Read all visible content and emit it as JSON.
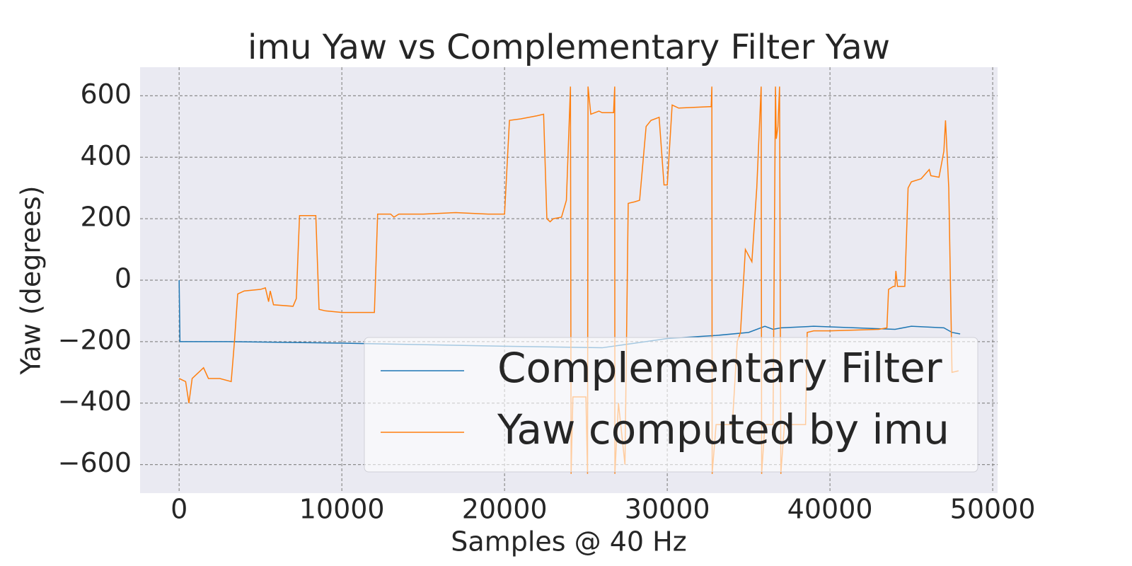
{
  "chart_data": {
    "type": "line",
    "title": "imu Yaw vs Complementary Filter Yaw",
    "xlabel": "Samples @ 40 Hz",
    "ylabel": "Yaw (degrees)",
    "xlim": [
      -2400,
      50300
    ],
    "ylim": [
      -693,
      693
    ],
    "xticks": [
      0,
      10000,
      20000,
      30000,
      40000,
      50000
    ],
    "yticks": [
      {
        "value": -600,
        "label": "−600"
      },
      {
        "value": -400,
        "label": "−400"
      },
      {
        "value": -200,
        "label": "−200"
      },
      0,
      200,
      400,
      600
    ],
    "grid": true,
    "legend": "lower right",
    "series": [
      {
        "name": "Complementary Filter",
        "color": "#1f77b4",
        "x": [
          0,
          50,
          3000,
          10000,
          20000,
          26000,
          30000,
          33000,
          35000,
          36000,
          36500,
          37000,
          39000,
          44000,
          45000,
          47000,
          47500,
          48000
        ],
        "values": [
          0,
          -200,
          -200,
          -205,
          -215,
          -220,
          -190,
          -180,
          -170,
          -150,
          -160,
          -155,
          -150,
          -160,
          -150,
          -155,
          -170,
          -175
        ]
      },
      {
        "name": "Yaw computed by imu",
        "color": "#ff7f0e",
        "x": [
          0,
          400,
          600,
          800,
          1200,
          1500,
          1800,
          2500,
          3200,
          3400,
          3600,
          4000,
          5000,
          5300,
          5500,
          5600,
          5800,
          7000,
          7200,
          7400,
          8400,
          8600,
          9000,
          10000,
          12000,
          12200,
          13000,
          13200,
          13500,
          15000,
          17000,
          19000,
          20000,
          20300,
          21000,
          22000,
          22400,
          22600,
          22800,
          23000,
          23500,
          23800,
          24000,
          24050,
          24090,
          24200,
          25000,
          25100,
          25130,
          25300,
          25800,
          26000,
          26700,
          26770,
          26780,
          27000,
          27400,
          27600,
          28000,
          28300,
          28700,
          29000,
          29500,
          29800,
          30000,
          30300,
          30700,
          32700,
          32740,
          32760,
          33000,
          34000,
          34300,
          34500,
          34800,
          35000,
          35200,
          35500,
          35770,
          35800,
          36000,
          36500,
          36650,
          36700,
          36800,
          36900,
          36980,
          37200,
          38500,
          38600,
          39000,
          40000,
          43000,
          43500,
          43600,
          43900,
          44000,
          44050,
          44150,
          44600,
          44800,
          45000,
          45600,
          46100,
          46200,
          46700,
          47000,
          47100,
          47300,
          47500,
          47900
        ],
        "values": [
          -320,
          -330,
          -400,
          -320,
          -300,
          -285,
          -320,
          -320,
          -330,
          -200,
          -45,
          -35,
          -30,
          -25,
          -70,
          -35,
          -80,
          -85,
          -60,
          210,
          210,
          -95,
          -100,
          -105,
          -105,
          215,
          215,
          205,
          215,
          215,
          220,
          215,
          215,
          520,
          525,
          535,
          540,
          200,
          190,
          200,
          205,
          260,
          555,
          630,
          -630,
          -380,
          -380,
          -630,
          630,
          540,
          550,
          545,
          545,
          630,
          -630,
          -400,
          -600,
          250,
          255,
          260,
          500,
          520,
          530,
          310,
          310,
          570,
          560,
          565,
          630,
          -630,
          -470,
          -470,
          -200,
          -170,
          100,
          80,
          60,
          300,
          630,
          -630,
          -470,
          -470,
          630,
          460,
          500,
          630,
          -630,
          -470,
          -470,
          -170,
          -165,
          -165,
          -160,
          -155,
          -30,
          -20,
          -20,
          30,
          -20,
          -20,
          300,
          320,
          330,
          360,
          340,
          335,
          420,
          520,
          300,
          -300,
          -295
        ]
      }
    ]
  }
}
